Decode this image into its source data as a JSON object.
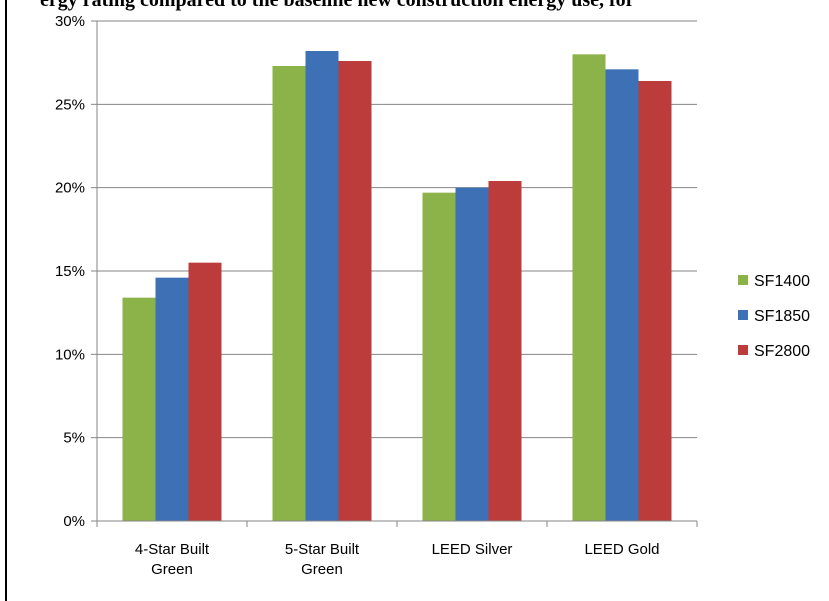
{
  "page": {
    "top_text": "ergy rating compared to the baseline new construction energy use, for"
  },
  "chart_data": {
    "type": "bar",
    "categories": [
      [
        "4-Star Built",
        "Green"
      ],
      [
        "5-Star Built",
        "Green"
      ],
      [
        "LEED Silver"
      ],
      [
        "LEED Gold"
      ]
    ],
    "series": [
      {
        "name": "SF1400",
        "color": "#8cb24a",
        "values": [
          13.4,
          27.3,
          19.7,
          28.0
        ]
      },
      {
        "name": "SF1850",
        "color": "#3d70b5",
        "values": [
          14.6,
          28.2,
          20.0,
          27.1
        ]
      },
      {
        "name": "SF2800",
        "color": "#bb3c3a",
        "values": [
          15.5,
          27.6,
          20.4,
          26.4
        ]
      }
    ],
    "ylim": [
      0,
      30
    ],
    "yticks": [
      0,
      5,
      10,
      15,
      20,
      25,
      30
    ],
    "ytick_labels": [
      "0%",
      "5%",
      "10%",
      "15%",
      "20%",
      "25%",
      "30%"
    ],
    "grid": true,
    "legend_position": "right",
    "title": "",
    "xlabel": "",
    "ylabel": ""
  }
}
